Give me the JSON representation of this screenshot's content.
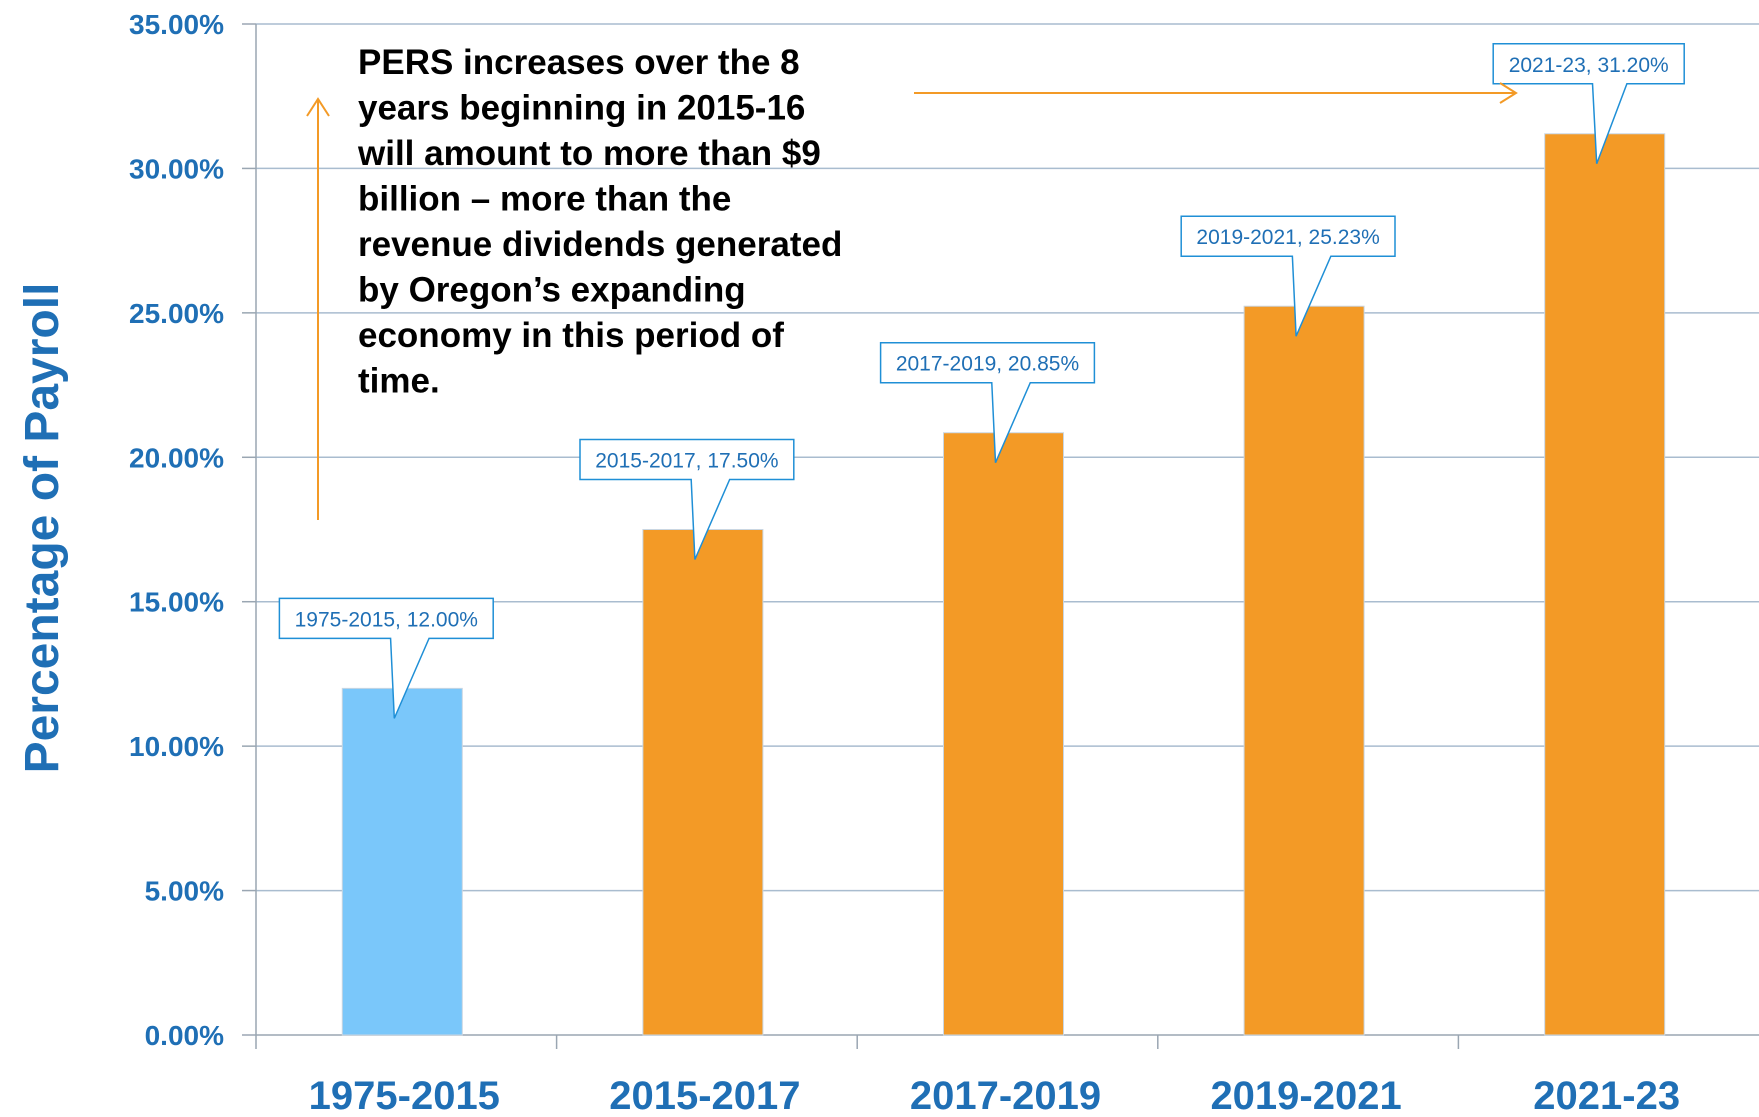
{
  "chart_data": {
    "type": "bar",
    "categories": [
      "1975-2015",
      "2015-2017",
      "2017-2019",
      "2019-2021",
      "2021-23"
    ],
    "values": [
      12.0,
      17.5,
      20.85,
      25.23,
      31.2
    ],
    "data_labels": [
      "1975-2015, 12.00%",
      "2015-2017, 17.50%",
      "2017-2019, 20.85%",
      "2019-2021, 25.23%",
      "2021-23, 31.20%"
    ],
    "bar_colors": [
      "#7ac7fa",
      "#f39a26",
      "#f39a26",
      "#f39a26",
      "#f39a26"
    ],
    "ylabel": "Percentage of Payroll",
    "xlabel": "",
    "ylim": [
      0,
      35
    ],
    "y_ticks": [
      0,
      5,
      10,
      15,
      20,
      25,
      30,
      35
    ],
    "y_tick_labels": [
      "0.00%",
      "5.00%",
      "10.00%",
      "15.00%",
      "20.00%",
      "25.00%",
      "30.00%",
      "35.00%"
    ],
    "grid": true,
    "annotation_lines": [
      "PERS increases over the 8",
      "years beginning in 2015-16",
      "will amount to more than $9",
      "billion – more than the",
      "revenue dividends generated",
      "by Oregon’s expanding",
      "economy in this period of",
      "time."
    ]
  },
  "colors": {
    "text_blue": "#1f6fb5",
    "arrow_orange": "#f39a26",
    "label_border": "#1f8fd6",
    "grid": "#a9bccf",
    "axis": "#9aa6b2"
  }
}
